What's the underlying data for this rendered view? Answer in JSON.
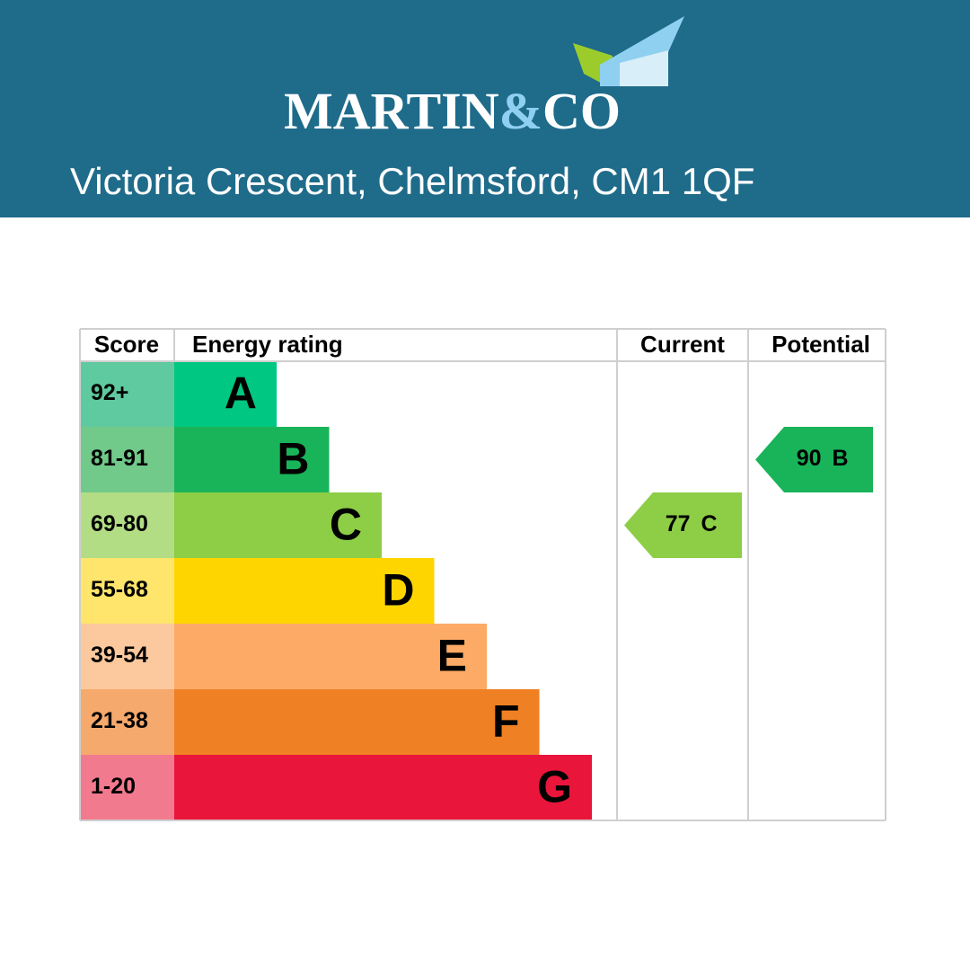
{
  "header": {
    "brand_left": "MARTIN",
    "brand_amp": "&",
    "brand_right": "CO",
    "address": "Victoria Crescent, Chelmsford, CM1 1QF"
  },
  "epc": {
    "headers": [
      "Score",
      "Energy rating",
      "Current",
      "Potential"
    ],
    "bands": [
      {
        "score": "92+",
        "letter": "A",
        "color": "#00c781",
        "score_color": "#5fc99f"
      },
      {
        "score": "81-91",
        "letter": "B",
        "color": "#19b459",
        "score_color": "#71c98a"
      },
      {
        "score": "69-80",
        "letter": "C",
        "color": "#8dce46",
        "score_color": "#b2dd85"
      },
      {
        "score": "55-68",
        "letter": "D",
        "color": "#ffd500",
        "score_color": "#ffe56b"
      },
      {
        "score": "39-54",
        "letter": "E",
        "color": "#fcaa65",
        "score_color": "#fcc99e"
      },
      {
        "score": "21-38",
        "letter": "F",
        "color": "#ef8023",
        "score_color": "#f5a96c"
      },
      {
        "score": "1-20",
        "letter": "G",
        "color": "#e9153b",
        "score_color": "#f27a8e"
      }
    ],
    "current": {
      "value": 77,
      "letter": "C",
      "color": "#8dce46"
    },
    "potential": {
      "value": 90,
      "letter": "B",
      "color": "#19b459"
    }
  }
}
